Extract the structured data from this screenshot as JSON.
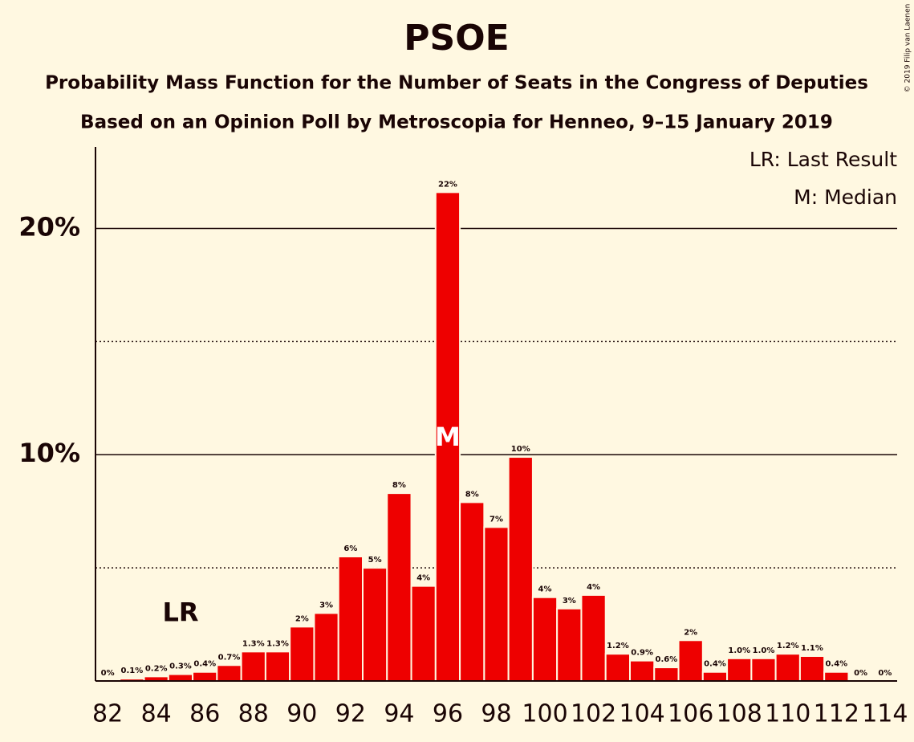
{
  "chart_data": {
    "type": "bar",
    "title": "PSOE",
    "subtitle": "Probability Mass Function for the Number of Seats in the Congress of Deputies",
    "subtitle2": "Based on an Opinion Poll by Metroscopia for Henneo, 9–15 January 2019",
    "copyright": "© 2019 Filip van Laenen",
    "legend": [
      "LR: Last Result",
      "M: Median"
    ],
    "last_result": 85,
    "last_result_label": "LR",
    "median": 96,
    "median_label": "M",
    "categories": [
      82,
      null,
      84,
      null,
      86,
      null,
      88,
      null,
      90,
      null,
      92,
      null,
      94,
      null,
      96,
      null,
      98,
      null,
      100,
      null,
      102,
      null,
      104,
      null,
      106,
      null,
      108,
      null,
      110,
      null,
      112,
      null,
      114
    ],
    "seats": [
      82,
      83,
      84,
      85,
      86,
      87,
      88,
      89,
      90,
      91,
      92,
      93,
      94,
      95,
      96,
      97,
      98,
      99,
      100,
      101,
      102,
      103,
      104,
      105,
      106,
      107,
      108,
      109,
      110,
      111,
      112,
      113,
      114
    ],
    "values": [
      0,
      0.1,
      0.2,
      0.3,
      0.4,
      0.7,
      1.3,
      1.3,
      2.4,
      3.0,
      5.5,
      5.0,
      8.3,
      4.2,
      21.6,
      7.9,
      6.8,
      9.9,
      3.7,
      3.2,
      3.8,
      1.2,
      0.9,
      0.6,
      1.8,
      0.4,
      1.0,
      1.0,
      1.2,
      1.1,
      0.4,
      0,
      0
    ],
    "value_labels": [
      "0%",
      "0.1%",
      "0.2%",
      "0.3%",
      "0.4%",
      "0.7%",
      "1.3%",
      "1.3%",
      "2%",
      "3%",
      "6%",
      "5%",
      "8%",
      "4%",
      "22%",
      "8%",
      "7%",
      "10%",
      "4%",
      "3%",
      "4%",
      "1.2%",
      "0.9%",
      "0.6%",
      "2%",
      "0.4%",
      "1.0%",
      "1.0%",
      "1.2%",
      "1.1%",
      "0.4%",
      "0%",
      "0%"
    ],
    "color": "#ee0000",
    "ylim": [
      0,
      23.6
    ],
    "yticks": [
      {
        "value": 10,
        "label": "10%"
      },
      {
        "value": 20,
        "label": "20%"
      }
    ],
    "minor_yticks": [
      5,
      15
    ],
    "grid": true
  }
}
